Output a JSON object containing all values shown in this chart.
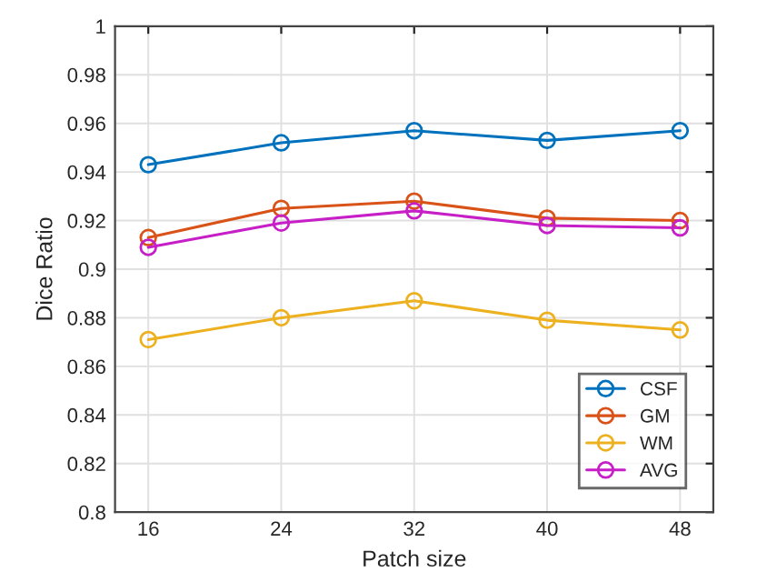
{
  "chart_data": {
    "type": "line",
    "xlabel": "Patch size",
    "ylabel": "Dice Ratio",
    "categories": [
      "16",
      "24",
      "32",
      "40",
      "48"
    ],
    "series": [
      {
        "name": "CSF",
        "color": "#0072bd",
        "values": [
          0.943,
          0.952,
          0.957,
          0.953,
          0.957
        ]
      },
      {
        "name": "GM",
        "color": "#d95319",
        "values": [
          0.913,
          0.925,
          0.928,
          0.921,
          0.92
        ]
      },
      {
        "name": "WM",
        "color": "#edb120",
        "values": [
          0.871,
          0.88,
          0.887,
          0.879,
          0.875
        ]
      },
      {
        "name": "AVG",
        "color": "#c71fc7",
        "values": [
          0.909,
          0.919,
          0.924,
          0.918,
          0.917
        ]
      }
    ],
    "ylim": [
      0.8,
      1
    ],
    "yticks": [
      0.8,
      0.82,
      0.84,
      0.86,
      0.88,
      0.9,
      0.92,
      0.94,
      0.96,
      0.98,
      1
    ],
    "grid": true,
    "legend": "bottom right",
    "marker": "circle",
    "line_style": "solid"
  }
}
